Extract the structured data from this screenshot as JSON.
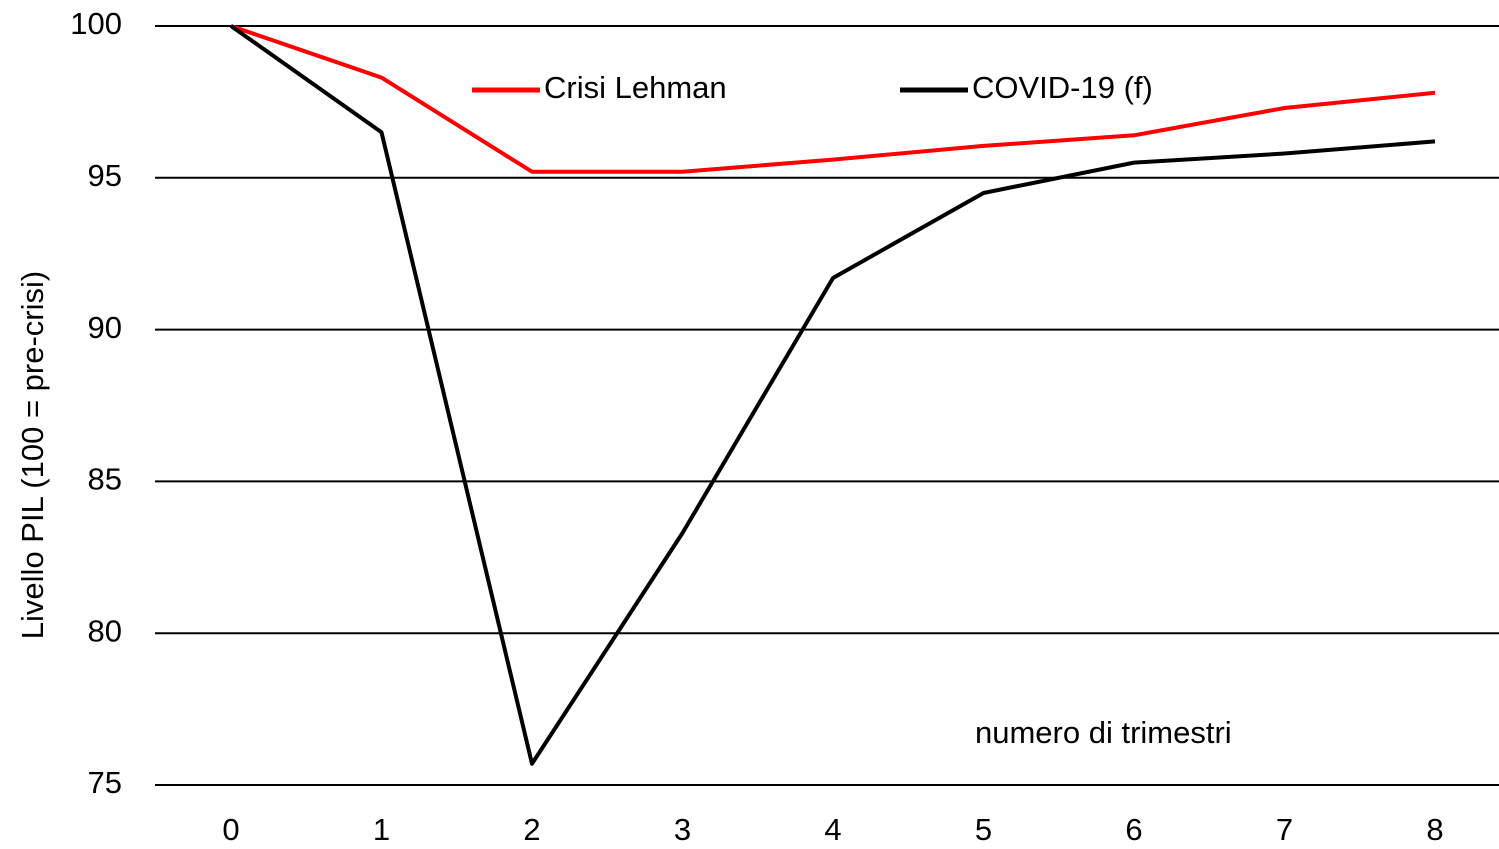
{
  "chart_data": {
    "type": "line",
    "y_label": "Livello PIL (100 = pre-crisi)",
    "x_label": "numero di trimestri",
    "x": [
      0,
      1,
      2,
      3,
      4,
      5,
      6,
      7,
      8
    ],
    "xlim": [
      0,
      8
    ],
    "xticks": [
      0,
      1,
      2,
      3,
      4,
      5,
      6,
      7,
      8
    ],
    "ylim": [
      75,
      100
    ],
    "yticks": [
      75,
      80,
      85,
      90,
      95,
      100
    ],
    "grid": true,
    "legend": "top",
    "series": [
      {
        "name": "Crisi Lehman",
        "color": "#ff0000",
        "values": [
          100,
          98.3,
          95.2,
          95.2,
          95.6,
          96.05,
          96.4,
          97.3,
          97.8
        ]
      },
      {
        "name": "COVID-19 (f)",
        "color": "#000000",
        "values": [
          100,
          96.5,
          75.7,
          83.3,
          91.7,
          94.5,
          95.5,
          95.8,
          96.2
        ]
      }
    ]
  }
}
